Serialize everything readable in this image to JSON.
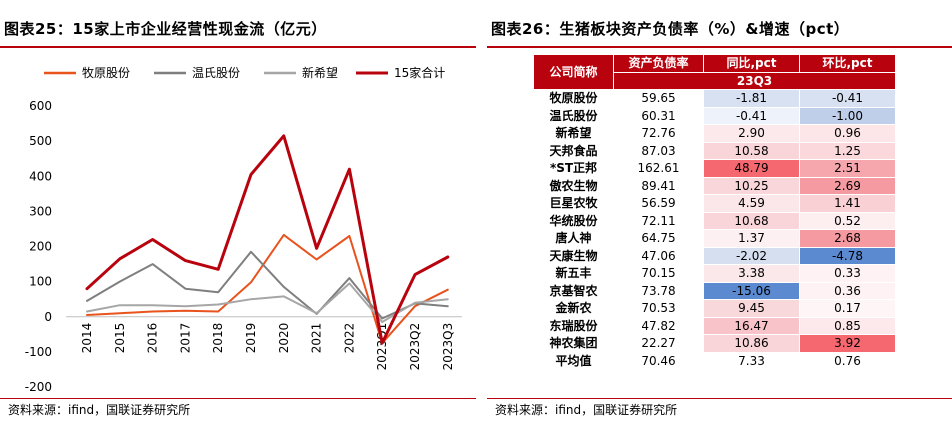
{
  "left": {
    "title": "图表25：15家上市企业经营性现金流（亿元）",
    "source": "资料来源：ifind，国联证券研究所"
  },
  "right": {
    "title": "图表26：生猪板块资产负债率（%）&增速（pct）",
    "source": "资料来源：ifind，国联证券研究所",
    "table": {
      "headers": [
        "公司简称",
        "资产负债率",
        "同比,pct",
        "环比,pct"
      ],
      "subheader": "23Q3",
      "rows": [
        {
          "name": "牧原股份",
          "ratio": "59.65",
          "yoy": "-1.81",
          "qoq": "-0.41",
          "yoy_c": "#d8e1f1",
          "qoq_c": "#d8e1f1"
        },
        {
          "name": "温氏股份",
          "ratio": "60.31",
          "yoy": "-0.41",
          "qoq": "-1.00",
          "yoy_c": "#eef2fa",
          "qoq_c": "#bfcfea"
        },
        {
          "name": "新希望",
          "ratio": "72.76",
          "yoy": "2.90",
          "qoq": "0.96",
          "yoy_c": "#fbe9eb",
          "qoq_c": "#fce6e8"
        },
        {
          "name": "天邦食品",
          "ratio": "87.03",
          "yoy": "10.58",
          "qoq": "1.25",
          "yoy_c": "#f9d5d9",
          "qoq_c": "#fad8dc"
        },
        {
          "name": "*ST正邦",
          "ratio": "162.61",
          "yoy": "48.79",
          "qoq": "2.51",
          "yoy_c": "#f5686f",
          "qoq_c": "#f6a7ad"
        },
        {
          "name": "傲农生物",
          "ratio": "89.41",
          "yoy": "10.25",
          "qoq": "2.69",
          "yoy_c": "#f9d6da",
          "qoq_c": "#f59aa1"
        },
        {
          "name": "巨星农牧",
          "ratio": "56.59",
          "yoy": "4.59",
          "qoq": "1.41",
          "yoy_c": "#fbe6e9",
          "qoq_c": "#f9d1d5"
        },
        {
          "name": "华统股份",
          "ratio": "72.11",
          "yoy": "10.68",
          "qoq": "0.52",
          "yoy_c": "#f9d5d9",
          "qoq_c": "#fdeef0"
        },
        {
          "name": "唐人神",
          "ratio": "64.75",
          "yoy": "1.37",
          "qoq": "2.68",
          "yoy_c": "#fcf0f2",
          "qoq_c": "#f59aa1"
        },
        {
          "name": "天康生物",
          "ratio": "47.06",
          "yoy": "-2.02",
          "qoq": "-4.78",
          "yoy_c": "#d5dff0",
          "qoq_c": "#5b8ad0"
        },
        {
          "name": "新五丰",
          "ratio": "70.15",
          "yoy": "3.38",
          "qoq": "0.33",
          "yoy_c": "#fbe8ea",
          "qoq_c": "#fef2f4"
        },
        {
          "name": "京基智农",
          "ratio": "73.78",
          "yoy": "-15.06",
          "qoq": "0.36",
          "yoy_c": "#5b8ad0",
          "qoq_c": "#fef2f4"
        },
        {
          "name": "金新农",
          "ratio": "70.53",
          "yoy": "9.45",
          "qoq": "0.17",
          "yoy_c": "#f9d8dc",
          "qoq_c": "#fef5f6"
        },
        {
          "name": "东瑞股份",
          "ratio": "47.82",
          "yoy": "16.47",
          "qoq": "0.85",
          "yoy_c": "#f8c4c9",
          "qoq_c": "#fde9eb"
        },
        {
          "name": "神农集团",
          "ratio": "22.27",
          "yoy": "10.86",
          "qoq": "3.92",
          "yoy_c": "#f9d5d9",
          "qoq_c": "#f5686f"
        },
        {
          "name": "平均值",
          "ratio": "70.46",
          "yoy": "7.33",
          "qoq": "0.76",
          "yoy_c": "#ffffff",
          "qoq_c": "#ffffff"
        }
      ]
    }
  },
  "chart_data": {
    "type": "line",
    "title": "15家上市企业经营性现金流（亿元）",
    "categories": [
      "2014",
      "2015",
      "2016",
      "2017",
      "2018",
      "2019",
      "2020",
      "2021",
      "2022",
      "2023Q1",
      "2023Q2",
      "2023Q3"
    ],
    "ylim": [
      -200,
      600
    ],
    "yticks": [
      -200,
      -100,
      0,
      100,
      200,
      300,
      400,
      500,
      600
    ],
    "grid": false,
    "legend_position": "top",
    "series": [
      {
        "name": "牧原股份",
        "color": "#e8531e",
        "width": 2,
        "values": [
          5,
          10,
          15,
          17,
          15,
          98,
          233,
          163,
          230,
          -75,
          30,
          77
        ]
      },
      {
        "name": "温氏股份",
        "color": "#7f7f7f",
        "width": 2,
        "values": [
          45,
          100,
          150,
          80,
          70,
          185,
          85,
          8,
          110,
          -5,
          38,
          30
        ]
      },
      {
        "name": "新希望",
        "color": "#a6a6a6",
        "width": 2,
        "values": [
          15,
          33,
          33,
          30,
          35,
          50,
          58,
          10,
          95,
          -15,
          40,
          50
        ]
      },
      {
        "name": "15家合计",
        "color": "#b8030e",
        "width": 3,
        "values": [
          80,
          165,
          220,
          160,
          135,
          405,
          515,
          195,
          420,
          -75,
          120,
          170
        ]
      }
    ]
  }
}
